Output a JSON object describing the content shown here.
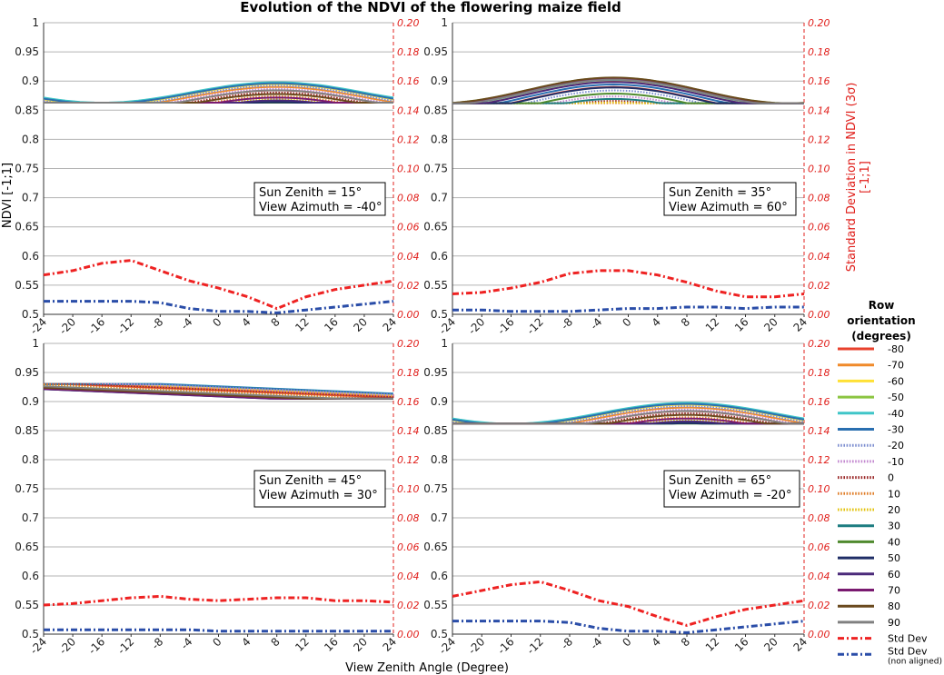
{
  "title": "Evolution of the NDVI of the flowering maize field",
  "axes": {
    "xlabel": "View Zenith Angle (Degree)",
    "ylabel_left": "NDVI [-1;1]",
    "ylabel_right": "Standard Deviation in NDVI (3σ) [-1;1]",
    "ylabel_right_line1": "Standard Deviation in NDVI (3σ)",
    "ylabel_right_line2": "[-1;1]"
  },
  "legend": {
    "title_line1": "Row",
    "title_line2": "orientation",
    "title_line3": "(degrees)",
    "items": [
      {
        "label": "-80",
        "color": "#e8412d",
        "style": "solid"
      },
      {
        "label": "-70",
        "color": "#f08a2a",
        "style": "solid"
      },
      {
        "label": "-60",
        "color": "#ffe135",
        "style": "solid"
      },
      {
        "label": "-50",
        "color": "#8bc541",
        "style": "solid"
      },
      {
        "label": "-40",
        "color": "#3fc5c8",
        "style": "solid"
      },
      {
        "label": "-30",
        "color": "#2a6fb0",
        "style": "solid"
      },
      {
        "label": "-20",
        "color": "#7e8fd0",
        "style": "dotted"
      },
      {
        "label": "-10",
        "color": "#c48ad0",
        "style": "dotted"
      },
      {
        "label": "0",
        "color": "#9b2a2a",
        "style": "dotted"
      },
      {
        "label": "10",
        "color": "#e07e2a",
        "style": "dotted"
      },
      {
        "label": "20",
        "color": "#e3c30f",
        "style": "dotted"
      },
      {
        "label": "30",
        "color": "#1c7c80",
        "style": "solid"
      },
      {
        "label": "40",
        "color": "#4f8a2e",
        "style": "solid"
      },
      {
        "label": "50",
        "color": "#1f2d66",
        "style": "solid"
      },
      {
        "label": "60",
        "color": "#4b2a7a",
        "style": "solid"
      },
      {
        "label": "70",
        "color": "#7a1a70",
        "style": "solid"
      },
      {
        "label": "80",
        "color": "#6a4a1e",
        "style": "solid"
      },
      {
        "label": "90",
        "color": "#808080",
        "style": "solid"
      },
      {
        "label": "Std Dev",
        "color": "#ee2222",
        "style": "dashdot"
      },
      {
        "label": "Std Dev",
        "label2": "(non aligned)",
        "color": "#2a4da8",
        "style": "dashdot"
      }
    ]
  },
  "chart_data": [
    {
      "type": "line",
      "annotation_line1": "Sun Zenith = 15°",
      "annotation_line2": "View Azimuth = -40°",
      "x": [
        -24,
        -20,
        -16,
        -12,
        -8,
        -4,
        0,
        4,
        8,
        12,
        16,
        20,
        24
      ],
      "xticks": [
        "-24",
        "-20",
        "-16",
        "-12",
        "-8",
        "-4",
        "0",
        "4",
        "8",
        "12",
        "16",
        "20",
        "24"
      ],
      "ylim": [
        0.5,
        1
      ],
      "ylim_right": [
        0,
        0.2
      ],
      "yticks_left": [
        "0.5",
        "0.55",
        "0.6",
        "0.65",
        "0.7",
        "0.75",
        "0.8",
        "0.85",
        "0.9",
        "0.95",
        "1"
      ],
      "yticks_right": [
        "0.00",
        "0.02",
        "0.04",
        "0.06",
        "0.08",
        "0.10",
        "0.12",
        "0.14",
        "0.16",
        "0.18",
        "0.20"
      ],
      "orientation_range": [
        0.863,
        0.898
      ],
      "std_dev": [
        0.027,
        0.03,
        0.035,
        0.037,
        0.03,
        0.023,
        0.018,
        0.012,
        0.004,
        0.012,
        0.017,
        0.02,
        0.023
      ],
      "std_dev_non_aligned": [
        0.009,
        0.009,
        0.009,
        0.009,
        0.008,
        0.004,
        0.002,
        0.002,
        0.001,
        0.003,
        0.005,
        0.007,
        0.009
      ]
    },
    {
      "type": "line",
      "annotation_line1": "Sun Zenith = 35°",
      "annotation_line2": "View Azimuth = 60°",
      "x": [
        -24,
        -20,
        -16,
        -12,
        -8,
        -4,
        0,
        4,
        8,
        12,
        16,
        20,
        24
      ],
      "xticks": [
        "-24",
        "-20",
        "-16",
        "-12",
        "-8",
        "-4",
        "0",
        "4",
        "8",
        "12",
        "16",
        "20",
        "24"
      ],
      "ylim": [
        0.5,
        1
      ],
      "ylim_right": [
        0,
        0.2
      ],
      "yticks_left": [
        "0.5",
        "0.55",
        "0.6",
        "0.65",
        "0.7",
        "0.75",
        "0.8",
        "0.85",
        "0.9",
        "0.95",
        "1"
      ],
      "yticks_right": [
        "0.00",
        "0.02",
        "0.04",
        "0.06",
        "0.08",
        "0.10",
        "0.12",
        "0.14",
        "0.16",
        "0.18",
        "0.20"
      ],
      "orientation_range": [
        0.862,
        0.906
      ],
      "std_dev": [
        0.014,
        0.015,
        0.018,
        0.022,
        0.028,
        0.03,
        0.03,
        0.027,
        0.022,
        0.016,
        0.012,
        0.012,
        0.014
      ],
      "std_dev_non_aligned": [
        0.003,
        0.003,
        0.002,
        0.002,
        0.002,
        0.003,
        0.004,
        0.004,
        0.005,
        0.005,
        0.004,
        0.005,
        0.005
      ]
    },
    {
      "type": "line",
      "annotation_line1": "Sun Zenith = 45°",
      "annotation_line2": "View Azimuth = 30°",
      "x": [
        -24,
        -20,
        -16,
        -12,
        -8,
        -4,
        0,
        4,
        8,
        12,
        16,
        20,
        24
      ],
      "xticks": [
        "-24",
        "-20",
        "-16",
        "-12",
        "-8",
        "-4",
        "0",
        "4",
        "8",
        "12",
        "16",
        "20",
        "24"
      ],
      "ylim": [
        0.5,
        1
      ],
      "ylim_right": [
        0,
        0.2
      ],
      "yticks_left": [
        "0.5",
        "0.55",
        "0.6",
        "0.65",
        "0.7",
        "0.75",
        "0.8",
        "0.85",
        "0.9",
        "0.95",
        "1"
      ],
      "yticks_right": [
        "0.00",
        "0.02",
        "0.04",
        "0.06",
        "0.08",
        "0.10",
        "0.12",
        "0.14",
        "0.16",
        "0.18",
        "0.20"
      ],
      "orientation_range": [
        0.905,
        0.93
      ],
      "std_dev": [
        0.02,
        0.021,
        0.023,
        0.025,
        0.026,
        0.024,
        0.023,
        0.024,
        0.025,
        0.025,
        0.023,
        0.023,
        0.022
      ],
      "std_dev_non_aligned": [
        0.003,
        0.003,
        0.003,
        0.003,
        0.003,
        0.003,
        0.002,
        0.002,
        0.002,
        0.002,
        0.002,
        0.002,
        0.002
      ]
    },
    {
      "type": "line",
      "annotation_line1": "Sun Zenith = 65°",
      "annotation_line2": "View Azimuth = -20°",
      "x": [
        -24,
        -20,
        -16,
        -12,
        -8,
        -4,
        0,
        4,
        8,
        12,
        16,
        20,
        24
      ],
      "xticks": [
        "-24",
        "-20",
        "-16",
        "-12",
        "-8",
        "-4",
        "0",
        "4",
        "8",
        "12",
        "16",
        "20",
        "24"
      ],
      "ylim": [
        0.5,
        1
      ],
      "ylim_right": [
        0,
        0.2
      ],
      "yticks_left": [
        "0.5",
        "0.55",
        "0.6",
        "0.65",
        "0.7",
        "0.75",
        "0.8",
        "0.85",
        "0.9",
        "0.95",
        "1"
      ],
      "yticks_right": [
        "0.00",
        "0.02",
        "0.04",
        "0.06",
        "0.08",
        "0.10",
        "0.12",
        "0.14",
        "0.16",
        "0.18",
        "0.20"
      ],
      "orientation_range": [
        0.862,
        0.898
      ],
      "std_dev": [
        0.026,
        0.03,
        0.034,
        0.036,
        0.03,
        0.023,
        0.019,
        0.012,
        0.006,
        0.012,
        0.017,
        0.02,
        0.023
      ],
      "std_dev_non_aligned": [
        0.009,
        0.009,
        0.009,
        0.009,
        0.008,
        0.004,
        0.002,
        0.002,
        0.001,
        0.003,
        0.005,
        0.007,
        0.009
      ]
    }
  ]
}
